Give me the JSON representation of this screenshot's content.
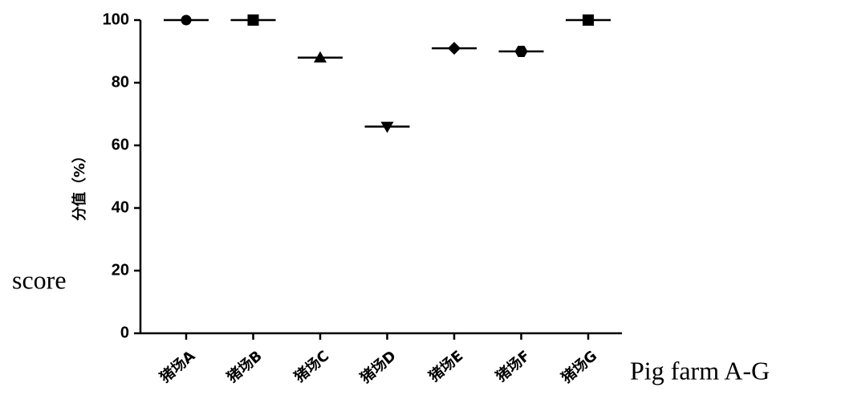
{
  "chart_data": {
    "type": "dot",
    "y_label": "分值（%）",
    "y_label_en": "score",
    "x_label_en": "Pig farm A-G",
    "categories": [
      "猪场A",
      "猪场B",
      "猪场C",
      "猪场D",
      "猪场E",
      "猪场F",
      "猪场G"
    ],
    "values": [
      100,
      100,
      88,
      66,
      91,
      90,
      100
    ],
    "markers": [
      "circle",
      "square",
      "triangle-up",
      "triangle-down",
      "diamond",
      "hexagon",
      "square"
    ],
    "color": "#000000",
    "ylim": [
      0,
      100
    ],
    "yticks": [
      0,
      20,
      40,
      60,
      80,
      100
    ]
  }
}
